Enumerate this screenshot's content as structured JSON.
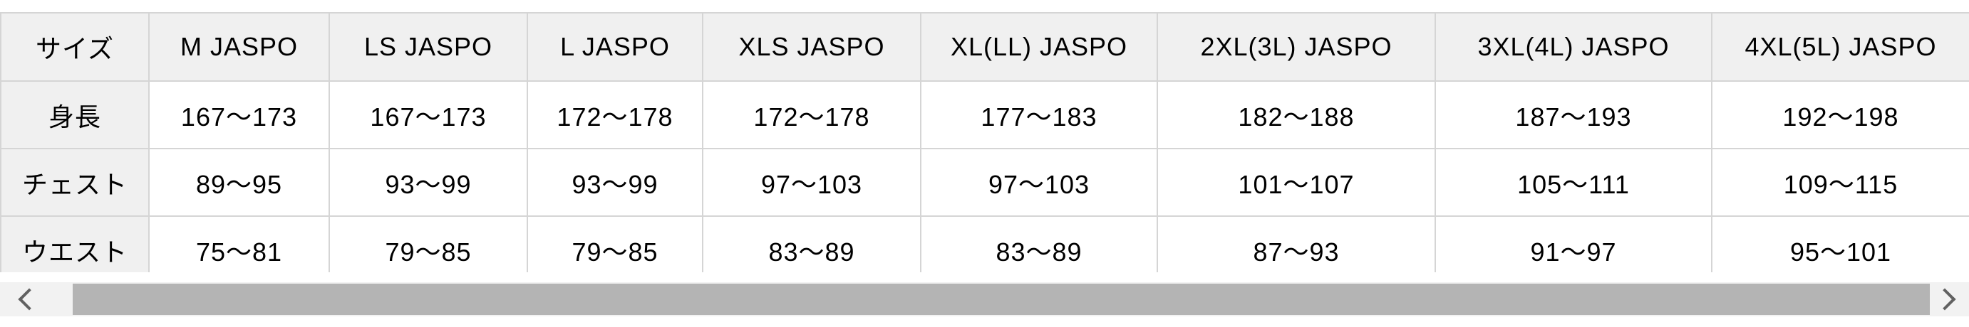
{
  "chart_data": {
    "type": "table",
    "columns": [
      "サイズ",
      "M JASPO",
      "LS JASPO",
      "L JASPO",
      "XLS JASPO",
      "XL(LL) JASPO",
      "2XL(3L) JASPO",
      "3XL(4L) JASPO",
      "4XL(5L) JASPO"
    ],
    "rows": [
      {
        "label": "身長",
        "values": [
          "167〜173",
          "167〜173",
          "172〜178",
          "172〜178",
          "177〜183",
          "182〜188",
          "187〜193",
          "192〜198"
        ]
      },
      {
        "label": "チェスト",
        "values": [
          "89〜95",
          "93〜99",
          "93〜99",
          "97〜103",
          "97〜103",
          "101〜107",
          "105〜111",
          "109〜115"
        ]
      },
      {
        "label": "ウエスト",
        "values": [
          "75〜81",
          "79〜85",
          "79〜85",
          "83〜89",
          "83〜89",
          "87〜93",
          "91〜97",
          "95〜101"
        ]
      }
    ],
    "layout_hints": {
      "header_row_shaded": true,
      "first_column_shaded": true,
      "horizontal_scrollbar_below": true
    }
  },
  "scrollbar": {
    "left_button_icon": "chevron-left",
    "right_button_icon": "chevron-right"
  },
  "colors": {
    "header_bg": "#f0f0f0",
    "cell_bg": "#ffffff",
    "border": "#d5d5d5",
    "text": "#000000",
    "scrollbar_track": "#f2f2f2",
    "scrollbar_thumb": "#b4b4b4",
    "chevron": "#616161"
  }
}
